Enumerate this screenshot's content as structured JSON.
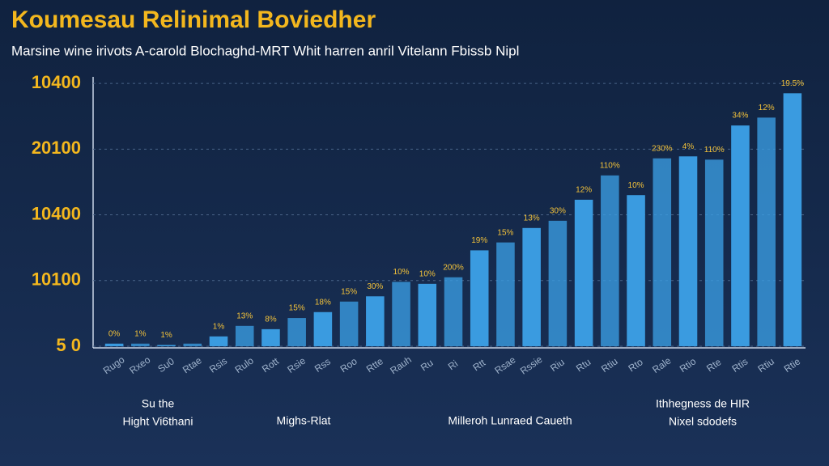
{
  "chart_data": {
    "type": "bar",
    "title": "Koumesau Relinimal Boviedher",
    "subtitle": "Marsine wine irivots A-carold Blochaghd-MRT Whit harren anril Vitelann Fbissb Nipl",
    "categories": [
      "Rugo",
      "Rxeo",
      "Su0",
      "Rtae",
      "Rsis",
      "Rulo",
      "Rott",
      "Rsie",
      "Rss",
      "Roo",
      "Rtte",
      "Rauh",
      "Ru",
      "Ri",
      "Rtt",
      "Rsae",
      "Rssie",
      "Riu",
      "Rtu",
      "Rtiu",
      "Rto",
      "Rale",
      "Rtio",
      "Rte",
      "Rtis",
      "Rtiu",
      "Rtie"
    ],
    "values": [
      0.04,
      0.04,
      0.02,
      0.04,
      0.15,
      0.31,
      0.26,
      0.43,
      0.52,
      0.68,
      0.76,
      0.98,
      0.95,
      1.05,
      1.46,
      1.58,
      1.8,
      1.91,
      2.23,
      2.6,
      2.3,
      2.86,
      2.89,
      2.84,
      3.36,
      3.48,
      3.85
    ],
    "annotations": [
      "0%",
      "1%",
      "1%",
      null,
      "1%",
      "13%",
      "8%",
      "15%",
      "18%",
      "15%",
      "30%",
      "10%",
      "10%",
      "200%",
      "19%",
      "15%",
      "13%",
      "30%",
      "12%",
      "110%",
      "10%",
      "230%",
      "4%",
      "110%",
      "34%",
      "12%",
      "19.5%"
    ],
    "color": "#3a9be0",
    "ylim": [
      0,
      4.1
    ],
    "yticks": [
      {
        "value": 0,
        "label": "5 0"
      },
      {
        "value": 1,
        "label": "10100"
      },
      {
        "value": 2,
        "label": "10400"
      },
      {
        "value": 3,
        "label": "20100"
      },
      {
        "value": 4,
        "label": "10400"
      }
    ],
    "grid": true,
    "group_labels": [
      [
        "Su the",
        "Hight Vi6thani"
      ],
      [
        "Mighs-Rlat"
      ],
      [
        "Milleroh Lunraed Caueth"
      ],
      [
        "Ithhegness de HIR",
        "Nixel sdodefs"
      ]
    ]
  }
}
